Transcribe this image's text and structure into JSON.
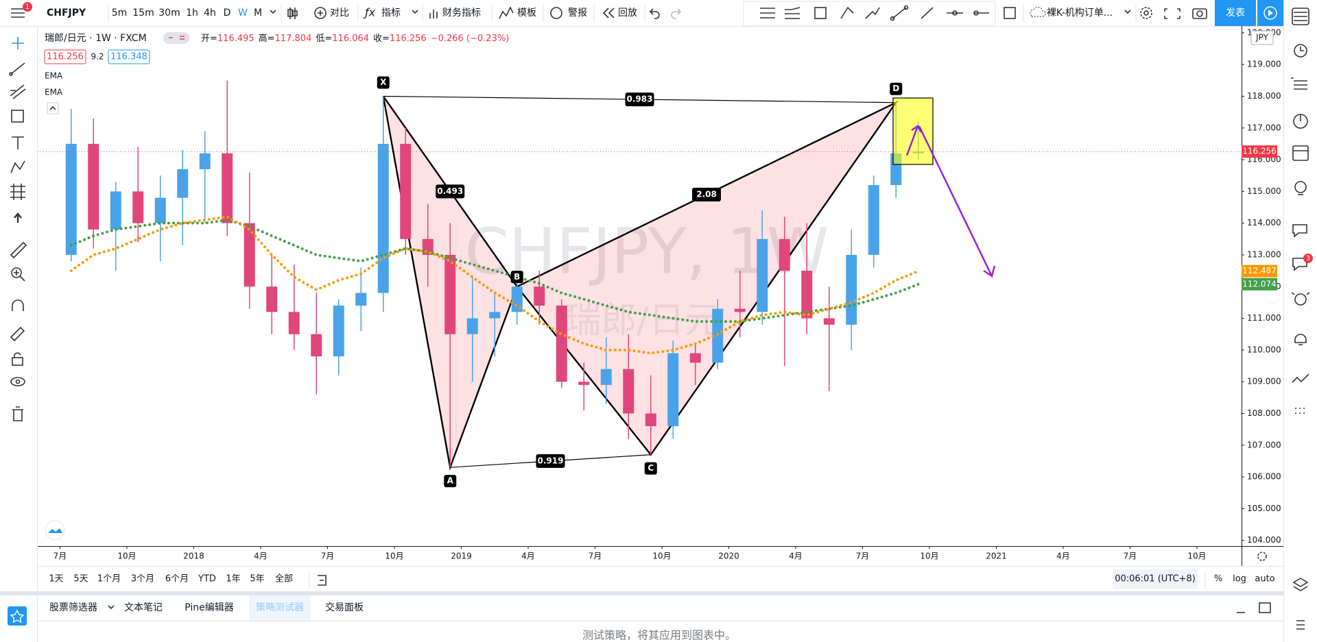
{
  "toolbar": {
    "symbol": "CHFJPY",
    "intervals": [
      "5m",
      "15m",
      "30m",
      "1h",
      "4h",
      "D",
      "W",
      "M"
    ],
    "active_interval": 6,
    "compare": "对比",
    "indicators": "指标",
    "financials": "财务指标",
    "templates": "模板",
    "alert": "警报",
    "replay": "回放",
    "layout": "裸K-机构订单...",
    "publish": "发表",
    "menu_badge": "1"
  },
  "legend": {
    "title": "瑞郎/日元 · 1W · FXCM",
    "ohlc": [
      [
        "开=",
        "116.495"
      ],
      [
        "高=",
        "117.804"
      ],
      [
        "低=",
        "116.064"
      ],
      [
        "收=",
        "116.256"
      ]
    ],
    "change": "−0.266 (−0.23%)",
    "bid": "116.256",
    "spread": "9.2",
    "ask": "116.348"
  },
  "watermark": {
    "symbol": "CHFJPY, 1W",
    "name": "瑞郎/日元"
  },
  "chart_data": {
    "type": "candlestick",
    "currency": "JPY",
    "x": [
      "2017-07",
      "2017-08",
      "2017-09",
      "2017-10",
      "2017-11",
      "2017-12",
      "2018-01",
      "2018-02",
      "2018-03",
      "2018-04",
      "2018-05",
      "2018-06",
      "2018-07",
      "2018-08",
      "2018-09",
      "2018-10",
      "2018-11",
      "2018-12",
      "2019-01",
      "2019-02",
      "2019-03",
      "2019-04",
      "2019-05",
      "2019-06",
      "2019-07",
      "2019-08",
      "2019-09",
      "2019-10",
      "2019-11",
      "2019-12",
      "2020-01",
      "2020-02",
      "2020-03",
      "2020-04",
      "2020-05",
      "2020-06",
      "2020-07",
      "2020-08",
      "2020-09"
    ],
    "open": [
      113.0,
      116.5,
      113.8,
      115.0,
      114.0,
      114.8,
      115.7,
      116.2,
      114.0,
      112.0,
      111.2,
      110.5,
      109.8,
      111.4,
      111.8,
      116.5,
      113.5,
      113.0,
      110.5,
      111.0,
      111.2,
      112.0,
      111.4,
      109.0,
      108.9,
      109.4,
      108.0,
      107.6,
      109.9,
      109.6,
      111.3,
      111.2,
      113.5,
      112.5,
      111.0,
      110.8,
      113.0,
      115.2,
      116.2
    ],
    "high": [
      117.6,
      117.3,
      115.3,
      116.4,
      115.5,
      116.3,
      116.9,
      118.5,
      115.6,
      113.0,
      112.7,
      111.8,
      111.6,
      112.6,
      118.0,
      117.0,
      114.6,
      114.0,
      112.3,
      111.8,
      112.3,
      112.5,
      111.6,
      109.6,
      110.4,
      110.5,
      109.2,
      110.3,
      110.2,
      111.6,
      112.5,
      114.4,
      114.2,
      114.0,
      112.0,
      113.8,
      115.5,
      117.8,
      117.2
    ],
    "low": [
      112.8,
      113.2,
      112.5,
      113.4,
      112.8,
      113.3,
      114.0,
      113.6,
      111.3,
      110.5,
      110.0,
      108.6,
      109.2,
      110.6,
      111.2,
      113.0,
      112.0,
      106.3,
      109.0,
      109.8,
      110.8,
      110.8,
      108.8,
      108.1,
      108.3,
      107.2,
      106.7,
      107.2,
      108.9,
      109.4,
      110.4,
      110.8,
      109.5,
      110.5,
      108.7,
      110.0,
      112.6,
      114.8,
      116.0
    ],
    "close": [
      116.5,
      113.8,
      115.0,
      114.0,
      114.8,
      115.7,
      116.2,
      114.0,
      112.0,
      111.2,
      110.5,
      109.8,
      111.4,
      111.8,
      116.5,
      113.5,
      113.0,
      110.5,
      111.0,
      111.2,
      112.0,
      111.4,
      109.0,
      108.9,
      109.4,
      108.0,
      107.6,
      109.9,
      109.6,
      111.3,
      111.2,
      113.5,
      112.5,
      111.0,
      110.8,
      113.0,
      115.2,
      116.2,
      116.256
    ],
    "up_color": "#4aa3e8",
    "down_color": "#e0467c",
    "series": [
      {
        "name": "EMA",
        "color": "#43a047",
        "values": [
          113.3,
          113.6,
          113.8,
          113.9,
          114.0,
          114.0,
          114.0,
          114.1,
          113.9,
          113.6,
          113.3,
          113.0,
          112.9,
          112.8,
          113.0,
          113.2,
          113.1,
          112.9,
          112.7,
          112.5,
          112.3,
          112.1,
          111.8,
          111.6,
          111.4,
          111.2,
          111.1,
          111.0,
          110.9,
          110.9,
          110.9,
          111.0,
          111.1,
          111.2,
          111.3,
          111.4,
          111.6,
          111.8,
          112.074
        ]
      },
      {
        "name": "EMA",
        "color": "#ff9800",
        "values": [
          112.5,
          113.0,
          113.2,
          113.5,
          113.8,
          114.0,
          114.1,
          114.2,
          113.8,
          113.0,
          112.3,
          111.9,
          112.2,
          112.4,
          112.9,
          113.2,
          113.1,
          112.8,
          112.3,
          111.8,
          111.4,
          110.9,
          110.5,
          110.2,
          110.0,
          110.0,
          109.9,
          110.0,
          110.2,
          110.5,
          110.9,
          111.1,
          111.2,
          111.1,
          111.3,
          111.5,
          111.8,
          112.2,
          112.487
        ]
      }
    ],
    "xlim": [
      "2017-06",
      "2021-12"
    ],
    "xticks": [
      {
        "value": "2017-07",
        "label": "7月"
      },
      {
        "value": "2017-10",
        "label": "10月"
      },
      {
        "value": "2018-01",
        "label": "2018"
      },
      {
        "value": "2018-04",
        "label": "4月"
      },
      {
        "value": "2018-07",
        "label": "7月"
      },
      {
        "value": "2018-10",
        "label": "10月"
      },
      {
        "value": "2019-01",
        "label": "2019"
      },
      {
        "value": "2019-04",
        "label": "4月"
      },
      {
        "value": "2019-07",
        "label": "7月"
      },
      {
        "value": "2019-10",
        "label": "10月"
      },
      {
        "value": "2020-01",
        "label": "2020"
      },
      {
        "value": "2020-04",
        "label": "4月"
      },
      {
        "value": "2020-07",
        "label": "7月"
      },
      {
        "value": "2020-10",
        "label": "10月"
      },
      {
        "value": "2021-01",
        "label": "2021"
      },
      {
        "value": "2021-04",
        "label": "4月"
      },
      {
        "value": "2021-07",
        "label": "7月"
      },
      {
        "value": "2021-10",
        "label": "10月"
      }
    ],
    "ylim": [
      103.82,
      120.17
    ],
    "yticks": [
      {
        "value": 104,
        "label": "104.000"
      },
      {
        "value": 105,
        "label": "105.000"
      },
      {
        "value": 106,
        "label": "106.000"
      },
      {
        "value": 107,
        "label": "107.000"
      },
      {
        "value": 108,
        "label": "108.000"
      },
      {
        "value": 109,
        "label": "109.000"
      },
      {
        "value": 110,
        "label": "110.000"
      },
      {
        "value": 111,
        "label": "111.000"
      },
      {
        "value": 112,
        "label": "112.000"
      },
      {
        "value": 113,
        "label": "113.000"
      },
      {
        "value": 114,
        "label": "114.000"
      },
      {
        "value": 115,
        "label": "115.000"
      },
      {
        "value": 116,
        "label": "116.000"
      },
      {
        "value": 117,
        "label": "117.000"
      },
      {
        "value": 118,
        "label": "118.000"
      },
      {
        "value": 119,
        "label": "119.000"
      },
      {
        "value": 120,
        "label": "120.000"
      }
    ],
    "price_labels": [
      {
        "value": 116.256,
        "color": "#f23645"
      },
      {
        "value": 112.487,
        "color": "#ff9800"
      },
      {
        "value": 112.074,
        "color": "#43a047"
      }
    ],
    "pattern": {
      "points": [
        {
          "label": "X",
          "x": "2018-09",
          "value": 118.0
        },
        {
          "label": "A",
          "x": "2018-12",
          "value": 106.3
        },
        {
          "label": "B",
          "x": "2019-03",
          "value": 112.0
        },
        {
          "label": "C",
          "x": "2019-09",
          "value": 106.7
        },
        {
          "label": "D",
          "x": "2020-08",
          "value": 117.8
        }
      ],
      "ratios": [
        0.983,
        0.493,
        2.08,
        0.919
      ]
    }
  },
  "bottom_bar": {
    "ranges": [
      "1天",
      "5天",
      "1个月",
      "3个月",
      "6个月",
      "YTD",
      "1年",
      "5年",
      "全部"
    ],
    "clock": "00:06:01 (UTC+8)",
    "percent": "%",
    "log": "log",
    "auto": "auto"
  },
  "panel": {
    "tabs": [
      "股票筛选器",
      "文本笔记",
      "Pine编辑器",
      "策略测试器",
      "交易面板"
    ],
    "active_tab": 3,
    "message": "测试策略，将其应用到图表中。"
  },
  "sidebar": {
    "badge": "3"
  }
}
